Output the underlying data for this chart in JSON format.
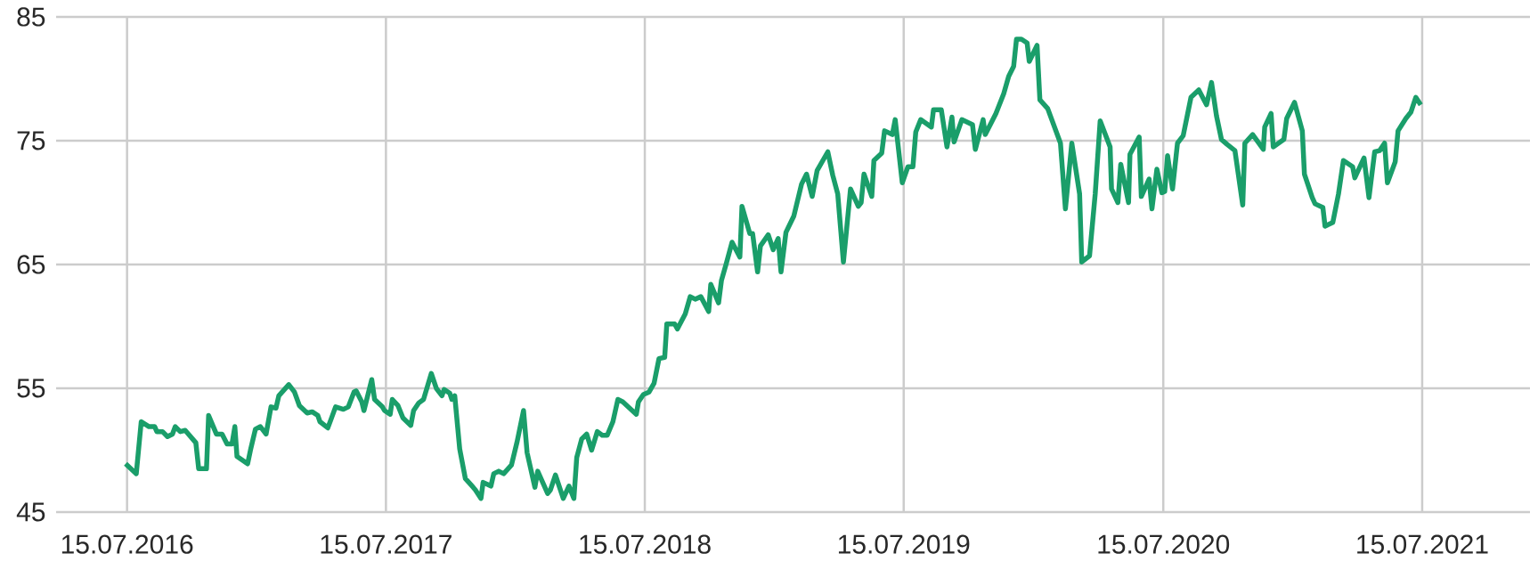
{
  "chart_data": {
    "type": "line",
    "xlim": [
      "2016-04-06",
      "2021-12-14"
    ],
    "ylim": [
      45,
      85
    ],
    "xticks": [
      {
        "value": "2016-07-15",
        "label": "15.07.2016"
      },
      {
        "value": "2017-07-15",
        "label": "15.07.2017"
      },
      {
        "value": "2018-07-15",
        "label": "15.07.2018"
      },
      {
        "value": "2019-07-15",
        "label": "15.07.2019"
      },
      {
        "value": "2020-07-15",
        "label": "15.07.2020"
      },
      {
        "value": "2021-07-15",
        "label": "15.07.2021"
      }
    ],
    "yticks": [
      45,
      55,
      65,
      75,
      85
    ],
    "grid": true,
    "marker": "none",
    "line_style": "solid",
    "series": [
      {
        "color": "#1a9e6a",
        "x": [
          "2016-07-13",
          "2016-07-28",
          "2016-08-04",
          "2016-08-15",
          "2016-08-23",
          "2016-08-26",
          "2016-09-03",
          "2016-09-10",
          "2016-09-17",
          "2016-09-21",
          "2016-09-28",
          "2016-10-05",
          "2016-10-20",
          "2016-10-24",
          "2016-11-04",
          "2016-11-07",
          "2016-11-18",
          "2016-11-26",
          "2016-12-03",
          "2016-12-10",
          "2016-12-14",
          "2016-12-17",
          "2017-01-01",
          "2017-01-05",
          "2017-01-12",
          "2017-01-19",
          "2017-01-27",
          "2017-02-03",
          "2017-02-10",
          "2017-02-14",
          "2017-02-28",
          "2017-03-08",
          "2017-03-15",
          "2017-03-26",
          "2017-04-02",
          "2017-04-10",
          "2017-04-13",
          "2017-04-24",
          "2017-04-28",
          "2017-05-05",
          "2017-05-16",
          "2017-05-23",
          "2017-05-31",
          "2017-06-03",
          "2017-06-11",
          "2017-06-14",
          "2017-06-25",
          "2017-06-29",
          "2017-07-10",
          "2017-07-13",
          "2017-07-21",
          "2017-07-24",
          "2017-08-01",
          "2017-08-08",
          "2017-08-19",
          "2017-08-23",
          "2017-08-30",
          "2017-09-06",
          "2017-09-17",
          "2017-09-24",
          "2017-10-02",
          "2017-10-05",
          "2017-10-13",
          "2017-10-16",
          "2017-10-20",
          "2017-10-27",
          "2017-11-04",
          "2017-11-15",
          "2017-11-18",
          "2017-11-26",
          "2017-11-29",
          "2017-12-10",
          "2017-12-14",
          "2017-12-21",
          "2017-12-28",
          "2018-01-08",
          "2018-01-16",
          "2018-01-25",
          "2018-01-30",
          "2018-02-10",
          "2018-02-14",
          "2018-02-21",
          "2018-02-28",
          "2018-03-04",
          "2018-03-11",
          "2018-03-22",
          "2018-03-30",
          "2018-04-06",
          "2018-04-10",
          "2018-04-17",
          "2018-04-24",
          "2018-05-01",
          "2018-05-09",
          "2018-05-16",
          "2018-05-23",
          "2018-05-31",
          "2018-06-07",
          "2018-06-14",
          "2018-07-03",
          "2018-07-06",
          "2018-07-13",
          "2018-07-21",
          "2018-07-28",
          "2018-08-04",
          "2018-08-12",
          "2018-08-15",
          "2018-08-26",
          "2018-08-30",
          "2018-09-10",
          "2018-09-17",
          "2018-09-24",
          "2018-10-02",
          "2018-10-13",
          "2018-10-16",
          "2018-10-27",
          "2018-10-31",
          "2018-11-07",
          "2018-11-15",
          "2018-11-26",
          "2018-11-29",
          "2018-12-10",
          "2018-12-14",
          "2018-12-21",
          "2018-12-25",
          "2019-01-05",
          "2019-01-12",
          "2019-01-19",
          "2019-01-23",
          "2019-01-30",
          "2019-02-10",
          "2019-02-21",
          "2019-02-28",
          "2019-03-08",
          "2019-03-15",
          "2019-03-30",
          "2019-04-06",
          "2019-04-13",
          "2019-04-21",
          "2019-05-01",
          "2019-05-12",
          "2019-05-16",
          "2019-05-20",
          "2019-05-31",
          "2019-06-03",
          "2019-06-14",
          "2019-06-18",
          "2019-06-29",
          "2019-07-03",
          "2019-07-13",
          "2019-07-21",
          "2019-07-28",
          "2019-08-01",
          "2019-08-08",
          "2019-08-23",
          "2019-08-26",
          "2019-09-06",
          "2019-09-14",
          "2019-09-21",
          "2019-09-24",
          "2019-10-05",
          "2019-10-20",
          "2019-10-24",
          "2019-11-04",
          "2019-11-07",
          "2019-11-22",
          "2019-12-03",
          "2019-12-10",
          "2019-12-17",
          "2019-12-21",
          "2019-12-28",
          "2020-01-05",
          "2020-01-08",
          "2020-01-19",
          "2020-01-23",
          "2020-02-03",
          "2020-02-21",
          "2020-02-28",
          "2020-03-08",
          "2020-03-19",
          "2020-03-22",
          "2020-04-02",
          "2020-04-10",
          "2020-04-17",
          "2020-05-01",
          "2020-05-03",
          "2020-05-12",
          "2020-05-16",
          "2020-05-27",
          "2020-05-29",
          "2020-06-11",
          "2020-06-14",
          "2020-06-25",
          "2020-06-29",
          "2020-07-06",
          "2020-07-13",
          "2020-07-17",
          "2020-07-21",
          "2020-07-28",
          "2020-08-04",
          "2020-08-12",
          "2020-08-23",
          "2020-09-03",
          "2020-09-14",
          "2020-09-21",
          "2020-09-28",
          "2020-10-05",
          "2020-10-13",
          "2020-10-24",
          "2020-11-04",
          "2020-11-07",
          "2020-11-18",
          "2020-12-03",
          "2020-12-05",
          "2020-12-14",
          "2020-12-17",
          "2021-01-01",
          "2021-01-05",
          "2021-01-16",
          "2021-01-27",
          "2021-01-30",
          "2021-02-10",
          "2021-02-14",
          "2021-02-25",
          "2021-02-28",
          "2021-03-11",
          "2021-03-19",
          "2021-03-26",
          "2021-04-08",
          "2021-04-11",
          "2021-04-24",
          "2021-05-01",
          "2021-05-09",
          "2021-05-16",
          "2021-05-23",
          "2021-05-27",
          "2021-06-07",
          "2021-06-11",
          "2021-06-22",
          "2021-06-29",
          "2021-07-06",
          "2021-07-13"
        ],
        "values": [
          48.9,
          48.1,
          52.3,
          51.9,
          51.9,
          51.5,
          51.5,
          51.1,
          51.3,
          51.9,
          51.5,
          51.6,
          50.6,
          48.5,
          48.5,
          52.8,
          51.3,
          51.3,
          50.5,
          50.5,
          51.9,
          49.5,
          48.9,
          50.0,
          51.7,
          51.9,
          51.3,
          53.5,
          53.4,
          54.4,
          55.3,
          54.7,
          53.6,
          53.0,
          53.1,
          52.8,
          52.3,
          51.8,
          52.4,
          53.5,
          53.3,
          53.5,
          54.7,
          54.8,
          53.9,
          53.2,
          55.7,
          54.1,
          53.5,
          53.2,
          52.9,
          54.1,
          53.6,
          52.6,
          52.0,
          53.2,
          53.8,
          54.1,
          56.2,
          55.0,
          54.4,
          54.9,
          54.6,
          54.1,
          54.4,
          50.1,
          47.7,
          47.0,
          46.8,
          46.1,
          47.4,
          47.1,
          48.1,
          48.3,
          48.1,
          48.8,
          50.7,
          53.2,
          49.8,
          47.0,
          48.3,
          47.4,
          46.5,
          46.8,
          48.0,
          46.1,
          47.1,
          46.1,
          49.4,
          50.9,
          51.3,
          50.0,
          51.5,
          51.2,
          51.2,
          52.3,
          54.1,
          53.9,
          52.9,
          53.9,
          54.5,
          54.7,
          55.4,
          57.4,
          57.5,
          60.2,
          60.2,
          59.8,
          61.0,
          62.4,
          62.2,
          62.4,
          61.2,
          63.4,
          61.9,
          63.7,
          65.1,
          66.8,
          65.6,
          69.7,
          67.5,
          67.5,
          64.4,
          66.5,
          67.4,
          66.2,
          67.1,
          64.4,
          67.6,
          68.9,
          71.5,
          72.3,
          70.5,
          72.6,
          74.1,
          72.2,
          70.7,
          65.2,
          71.1,
          69.7,
          70.0,
          72.3,
          70.5,
          73.4,
          74.0,
          75.8,
          75.5,
          76.7,
          71.6,
          72.9,
          72.9,
          75.7,
          76.7,
          76.1,
          77.5,
          77.5,
          74.5,
          76.9,
          74.9,
          76.7,
          76.3,
          74.3,
          76.7,
          75.5,
          77.2,
          78.8,
          80.2,
          81.0,
          83.2,
          83.2,
          82.9,
          81.4,
          82.7,
          78.3,
          77.6,
          74.8,
          69.5,
          74.8,
          70.7,
          65.2,
          65.7,
          70.7,
          76.6,
          74.5,
          71.1,
          70.0,
          73.1,
          70.0,
          73.9,
          75.3,
          70.5,
          71.9,
          69.5,
          72.7,
          70.8,
          70.9,
          73.8,
          71.1,
          74.8,
          75.4,
          78.5,
          79.1,
          77.9,
          79.7,
          77.0,
          75.1,
          74.7,
          74.2,
          69.8,
          74.8,
          75.5,
          74.3,
          76.1,
          77.2,
          74.5,
          75.1,
          76.8,
          78.1,
          75.8,
          72.3,
          70.4,
          69.9,
          69.6,
          68.1,
          68.4,
          70.7,
          73.4,
          72.9,
          72.0,
          73.6,
          70.4,
          74.1,
          74.2,
          74.8,
          71.6,
          73.3,
          75.8,
          76.8,
          77.3,
          78.5,
          77.9
        ]
      }
    ]
  }
}
